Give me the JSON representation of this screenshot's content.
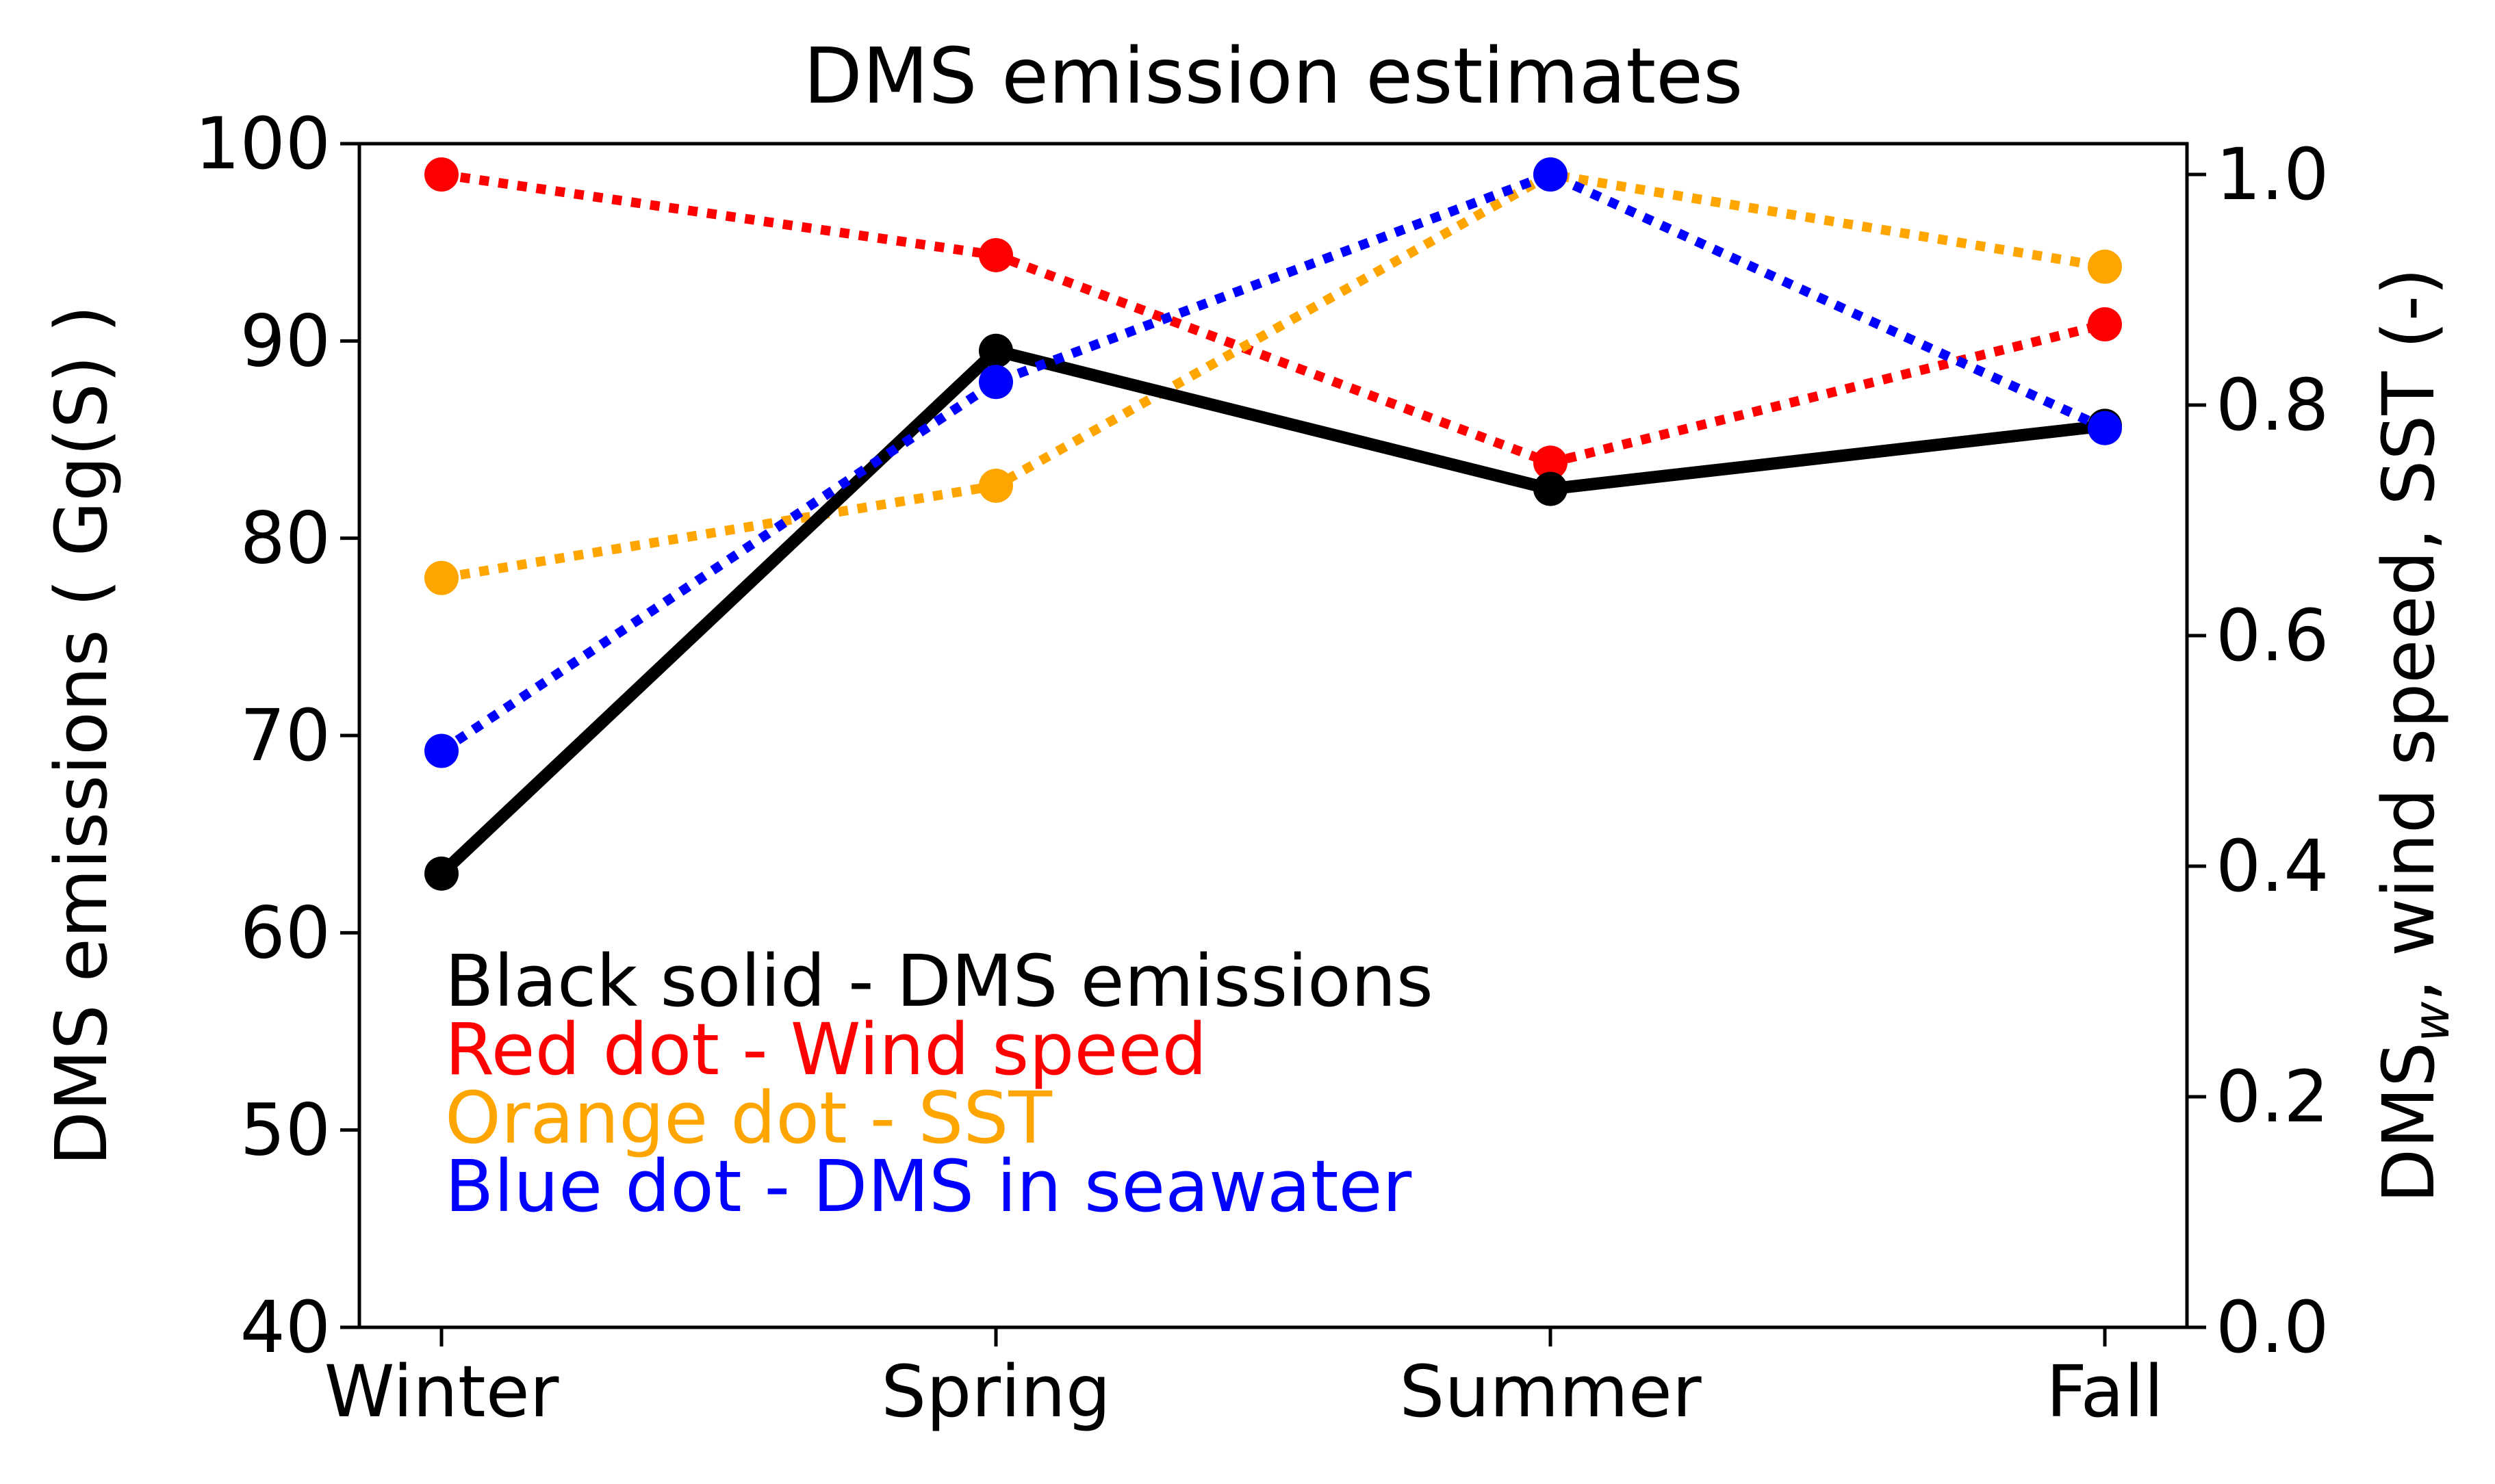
{
  "chart_data": {
    "type": "line",
    "title": "DMS emission estimates",
    "categories": [
      "Winter",
      "Spring",
      "Summer",
      "Fall"
    ],
    "left_axis": {
      "label": "DMS emissions ( Gg(S) )",
      "ylim": [
        40,
        100
      ],
      "ticks": [
        40,
        50,
        60,
        70,
        80,
        90,
        100
      ],
      "tick_labels": [
        "40",
        "50",
        "60",
        "70",
        "80",
        "90",
        "100"
      ]
    },
    "right_axis": {
      "label_prefix": "DMS",
      "label_subscript": "w",
      "label_suffix": ",  wind speed, SST (-)",
      "ylim": [
        0.0,
        1.0
      ],
      "ticks": [
        0.0,
        0.2,
        0.4,
        0.6,
        0.8,
        1.0
      ],
      "tick_labels": [
        "0.0",
        "0.2",
        "0.4",
        "0.6",
        "0.8",
        "1.0"
      ]
    },
    "series": [
      {
        "name": "DMS emissions",
        "axis": "left",
        "style": "solid",
        "color": "#000000",
        "values": [
          63.0,
          89.5,
          82.5,
          85.7
        ]
      },
      {
        "name": "Wind speed",
        "axis": "right",
        "style": "dotted",
        "color": "#ff0000",
        "values": [
          1.0,
          0.93,
          0.75,
          0.87
        ]
      },
      {
        "name": "SST",
        "axis": "right",
        "style": "dotted",
        "color": "#ffa500",
        "values": [
          0.65,
          0.73,
          1.0,
          0.92
        ]
      },
      {
        "name": "DMS in seawater",
        "axis": "right",
        "style": "dotted",
        "color": "#0000ff",
        "values": [
          0.5,
          0.82,
          1.0,
          0.78
        ]
      }
    ],
    "legend": {
      "placement": "lower-left",
      "entries": [
        {
          "text": "Black solid - DMS emissions",
          "color": "#000000"
        },
        {
          "text": "Red dot - Wind speed",
          "color": "#ff0000"
        },
        {
          "text": "Orange dot - SST",
          "color": "#ffa500"
        },
        {
          "text": "Blue dot - DMS in seawater",
          "color": "#0000ff"
        }
      ]
    }
  }
}
